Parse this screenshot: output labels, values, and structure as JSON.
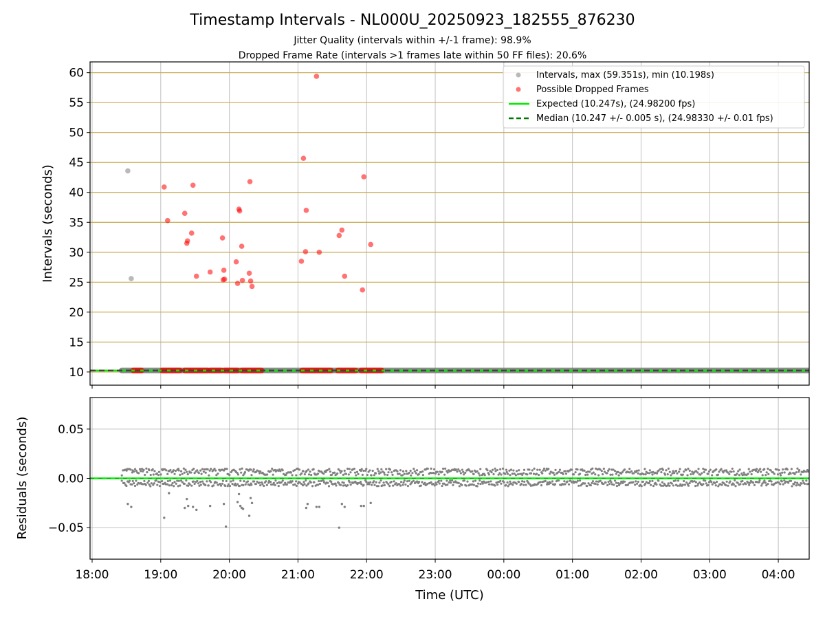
{
  "title": "Timestamp Intervals - NL000U_20250923_182555_876230",
  "subtitle_1": "Jitter Quality (intervals within +/-1 frame): 98.9%",
  "subtitle_2": "Dropped Frame Rate (intervals >1 frames late within 50 FF files): 20.6%",
  "colors": {
    "intervals": "#808080",
    "dropped": "#ff0000",
    "expected": "#00ee00",
    "median": "#007700",
    "hgrid": "#c8a850",
    "grid": "#c0c0c0"
  },
  "chart_data": [
    {
      "type": "scatter",
      "panel": "top",
      "ylabel": "Intervals (seconds)",
      "xlabel": "",
      "xlim": [
        -0.03,
        10.45
      ],
      "ylim": [
        7.8,
        61.8
      ],
      "yticks": [
        10,
        15,
        20,
        25,
        30,
        35,
        40,
        45,
        50,
        55,
        60
      ],
      "ytick_labels": [
        "10",
        "15",
        "20",
        "25",
        "30",
        "35",
        "40",
        "45",
        "50",
        "55",
        "60"
      ],
      "legend": {
        "position": "top-right",
        "entries": [
          "Intervals, max (59.351s), min (10.198s)",
          "Possible Dropped Frames",
          "Expected (10.247s), (24.98200 fps)",
          "Median (10.247 +/- 0.005 s), (24.98330 +/- 0.01 fps)"
        ]
      },
      "expected_value": 10.247,
      "median_value": 10.247,
      "baseline_band": {
        "x_start": 0.43,
        "x_end": 10.45,
        "y": 10.25
      },
      "series": [
        {
          "name": "Intervals",
          "points": [
            [
              0.52,
              43.6
            ],
            [
              0.57,
              25.6
            ]
          ]
        },
        {
          "name": "Possible Dropped Frames",
          "points": [
            [
              1.05,
              40.9
            ],
            [
              1.1,
              35.3
            ],
            [
              1.35,
              36.5
            ],
            [
              1.38,
              31.5
            ],
            [
              1.39,
              31.9
            ],
            [
              1.45,
              33.2
            ],
            [
              1.47,
              41.2
            ],
            [
              1.52,
              26.0
            ],
            [
              1.72,
              26.7
            ],
            [
              1.9,
              32.4
            ],
            [
              1.91,
              25.4
            ],
            [
              1.92,
              27.0
            ],
            [
              1.93,
              25.5
            ],
            [
              2.1,
              28.4
            ],
            [
              2.12,
              24.8
            ],
            [
              2.14,
              37.2
            ],
            [
              2.15,
              36.9
            ],
            [
              2.18,
              31.0
            ],
            [
              2.19,
              25.3
            ],
            [
              2.29,
              26.5
            ],
            [
              2.3,
              41.8
            ],
            [
              2.31,
              25.2
            ],
            [
              2.33,
              24.3
            ],
            [
              3.05,
              28.5
            ],
            [
              3.08,
              45.7
            ],
            [
              3.11,
              30.1
            ],
            [
              3.12,
              37.0
            ],
            [
              3.27,
              59.4
            ],
            [
              3.31,
              30.0
            ],
            [
              3.6,
              32.8
            ],
            [
              3.64,
              33.7
            ],
            [
              3.68,
              26.0
            ],
            [
              3.94,
              23.7
            ],
            [
              3.96,
              42.6
            ],
            [
              4.06,
              31.3
            ]
          ]
        }
      ],
      "dropped_baseline_segments": [
        [
          0.6,
          0.72
        ],
        [
          1.02,
          1.28
        ],
        [
          1.35,
          1.68
        ],
        [
          1.72,
          1.88
        ],
        [
          1.93,
          2.12
        ],
        [
          2.18,
          2.47
        ],
        [
          3.06,
          3.48
        ],
        [
          3.58,
          3.84
        ],
        [
          3.92,
          4.22
        ]
      ]
    },
    {
      "type": "scatter",
      "panel": "bottom",
      "ylabel": "Residuals (seconds)",
      "xlabel": "Time (UTC)",
      "xlim": [
        -0.03,
        10.45
      ],
      "ylim": [
        -0.082,
        0.082
      ],
      "yticks": [
        -0.05,
        0.0,
        0.05
      ],
      "ytick_labels": [
        "−0.05",
        "0.00",
        "0.05"
      ],
      "xticks": [
        0,
        1,
        2,
        3,
        4,
        5,
        6,
        7,
        8,
        9,
        10
      ],
      "xtick_labels": [
        "18:00",
        "19:00",
        "20:00",
        "21:00",
        "22:00",
        "23:00",
        "00:00",
        "01:00",
        "02:00",
        "03:00",
        "04:00"
      ],
      "residual_band": {
        "x_start": 0.43,
        "x_end": 10.45,
        "upper": [
          0.003,
          0.01
        ],
        "lower": [
          -0.008,
          -0.002
        ]
      },
      "series": [
        {
          "name": "Residual outliers",
          "points": [
            [
              0.52,
              -0.026
            ],
            [
              0.57,
              -0.029
            ],
            [
              1.05,
              -0.04
            ],
            [
              1.12,
              -0.015
            ],
            [
              1.35,
              -0.03
            ],
            [
              1.38,
              -0.021
            ],
            [
              1.4,
              -0.028
            ],
            [
              1.47,
              -0.029
            ],
            [
              1.52,
              -0.032
            ],
            [
              1.72,
              -0.028
            ],
            [
              1.92,
              -0.026
            ],
            [
              1.95,
              -0.049
            ],
            [
              2.12,
              -0.024
            ],
            [
              2.14,
              -0.016
            ],
            [
              2.16,
              -0.028
            ],
            [
              2.18,
              -0.03
            ],
            [
              2.2,
              -0.031
            ],
            [
              2.29,
              -0.038
            ],
            [
              2.31,
              -0.02
            ],
            [
              2.33,
              -0.025
            ],
            [
              3.12,
              -0.03
            ],
            [
              3.14,
              -0.026
            ],
            [
              3.27,
              -0.029
            ],
            [
              3.31,
              -0.029
            ],
            [
              3.6,
              -0.05
            ],
            [
              3.64,
              -0.026
            ],
            [
              3.68,
              -0.029
            ],
            [
              3.92,
              -0.028
            ],
            [
              3.96,
              -0.028
            ],
            [
              4.06,
              -0.025
            ]
          ]
        }
      ]
    }
  ]
}
